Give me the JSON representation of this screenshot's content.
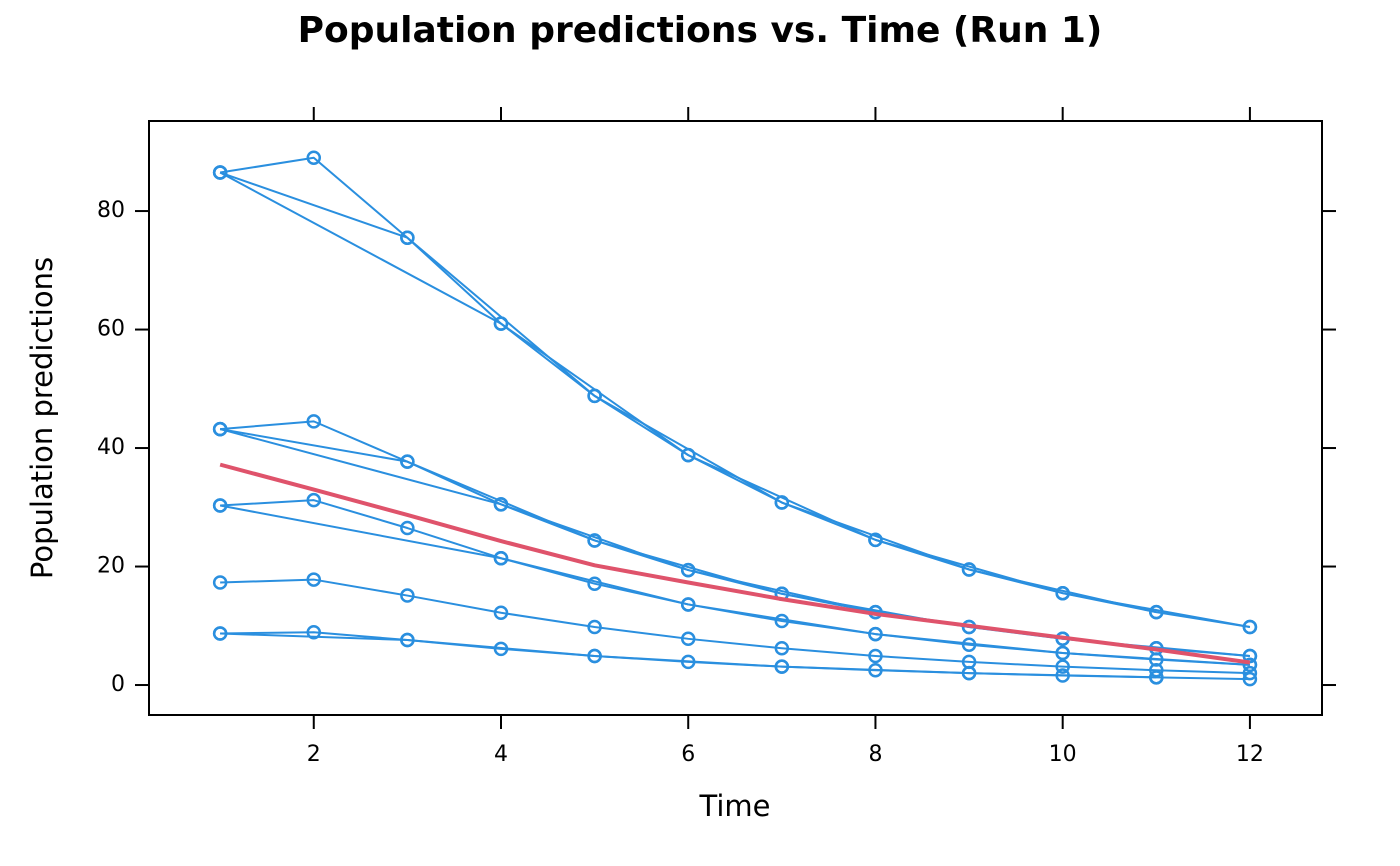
{
  "chart_data": {
    "type": "line",
    "title": "Population predictions vs. Time (Run 1)",
    "x_label": "Time",
    "y_label": "Population predictions",
    "xlim": [
      0.24,
      12.77
    ],
    "ylim": [
      -5.06,
      95.2
    ],
    "xticks": [
      2,
      4,
      6,
      8,
      10,
      12
    ],
    "yticks": [
      0,
      20,
      40,
      60,
      80
    ],
    "series": [
      {
        "color": "#2a8fdf",
        "markers": true,
        "x": [
          1,
          2,
          3,
          4,
          5,
          6,
          7,
          8,
          9,
          10,
          11,
          12
        ],
        "values": [
          86.5,
          89,
          75.5,
          61,
          48.8,
          38.8,
          30.8,
          24.5,
          19.5,
          15.5,
          12.3,
          9.8
        ]
      },
      {
        "color": "#2a8fdf",
        "markers": true,
        "x": [
          1,
          3,
          5,
          7,
          9,
          11
        ],
        "values": [
          86.5,
          75.5,
          48.8,
          30.8,
          19.5,
          12.3
        ]
      },
      {
        "color": "#2a8fdf",
        "markers": true,
        "x": [
          1,
          4,
          6,
          8,
          10,
          12
        ],
        "values": [
          86.5,
          61,
          38.8,
          24.5,
          15.5,
          9.8
        ]
      },
      {
        "color": "#2a8fdf",
        "markers": true,
        "x": [
          1,
          2,
          3,
          4,
          5,
          6,
          7,
          8,
          9,
          10,
          11,
          12
        ],
        "values": [
          43.2,
          44.5,
          37.7,
          30.5,
          24.4,
          19.4,
          15.4,
          12.3,
          9.8,
          7.8,
          6.2,
          4.9
        ]
      },
      {
        "color": "#2a8fdf",
        "markers": true,
        "x": [
          1,
          3,
          5,
          7,
          9,
          11
        ],
        "values": [
          43.2,
          37.7,
          24.4,
          15.4,
          9.8,
          6.2
        ]
      },
      {
        "color": "#2a8fdf",
        "markers": true,
        "x": [
          1,
          4,
          6,
          8,
          10,
          12
        ],
        "values": [
          43.2,
          30.5,
          19.4,
          12.3,
          7.8,
          4.9
        ]
      },
      {
        "color": "#2a8fdf",
        "markers": true,
        "x": [
          1,
          2,
          3,
          4,
          5,
          6,
          7,
          8,
          9,
          10,
          11,
          12
        ],
        "values": [
          30.3,
          31.2,
          26.5,
          21.4,
          17.1,
          13.6,
          10.8,
          8.6,
          6.8,
          5.4,
          4.3,
          3.4
        ]
      },
      {
        "color": "#2a8fdf",
        "markers": true,
        "x": [
          1,
          4,
          6,
          8,
          10,
          12
        ],
        "values": [
          30.3,
          21.4,
          13.6,
          8.6,
          5.4,
          3.4
        ]
      },
      {
        "color": "#2a8fdf",
        "markers": true,
        "x": [
          1,
          2,
          3,
          4,
          5,
          6,
          7,
          8,
          9,
          10,
          11,
          12
        ],
        "values": [
          17.3,
          17.8,
          15.1,
          12.2,
          9.8,
          7.8,
          6.2,
          4.9,
          3.9,
          3.1,
          2.5,
          2.0
        ]
      },
      {
        "color": "#2a8fdf",
        "markers": true,
        "x": [
          1,
          2,
          3,
          4,
          5,
          6,
          7,
          8,
          9,
          10,
          11,
          12
        ],
        "values": [
          8.7,
          8.9,
          7.6,
          6.1,
          4.9,
          3.9,
          3.1,
          2.5,
          2.0,
          1.6,
          1.3,
          1.0
        ]
      },
      {
        "color": "#2a8fdf",
        "markers": true,
        "x": [
          1,
          3,
          5,
          7,
          9,
          11
        ],
        "values": [
          8.7,
          7.6,
          4.9,
          3.1,
          2.0,
          1.3
        ]
      },
      {
        "color": "#df536b",
        "markers": false,
        "x": [
          1,
          2,
          3,
          4,
          5,
          6,
          7,
          8,
          9,
          10,
          11,
          12
        ],
        "values": [
          37.2,
          33,
          28.7,
          24.3,
          20.2,
          17.3,
          14.5,
          12,
          10,
          8,
          6,
          3.8
        ]
      }
    ]
  }
}
